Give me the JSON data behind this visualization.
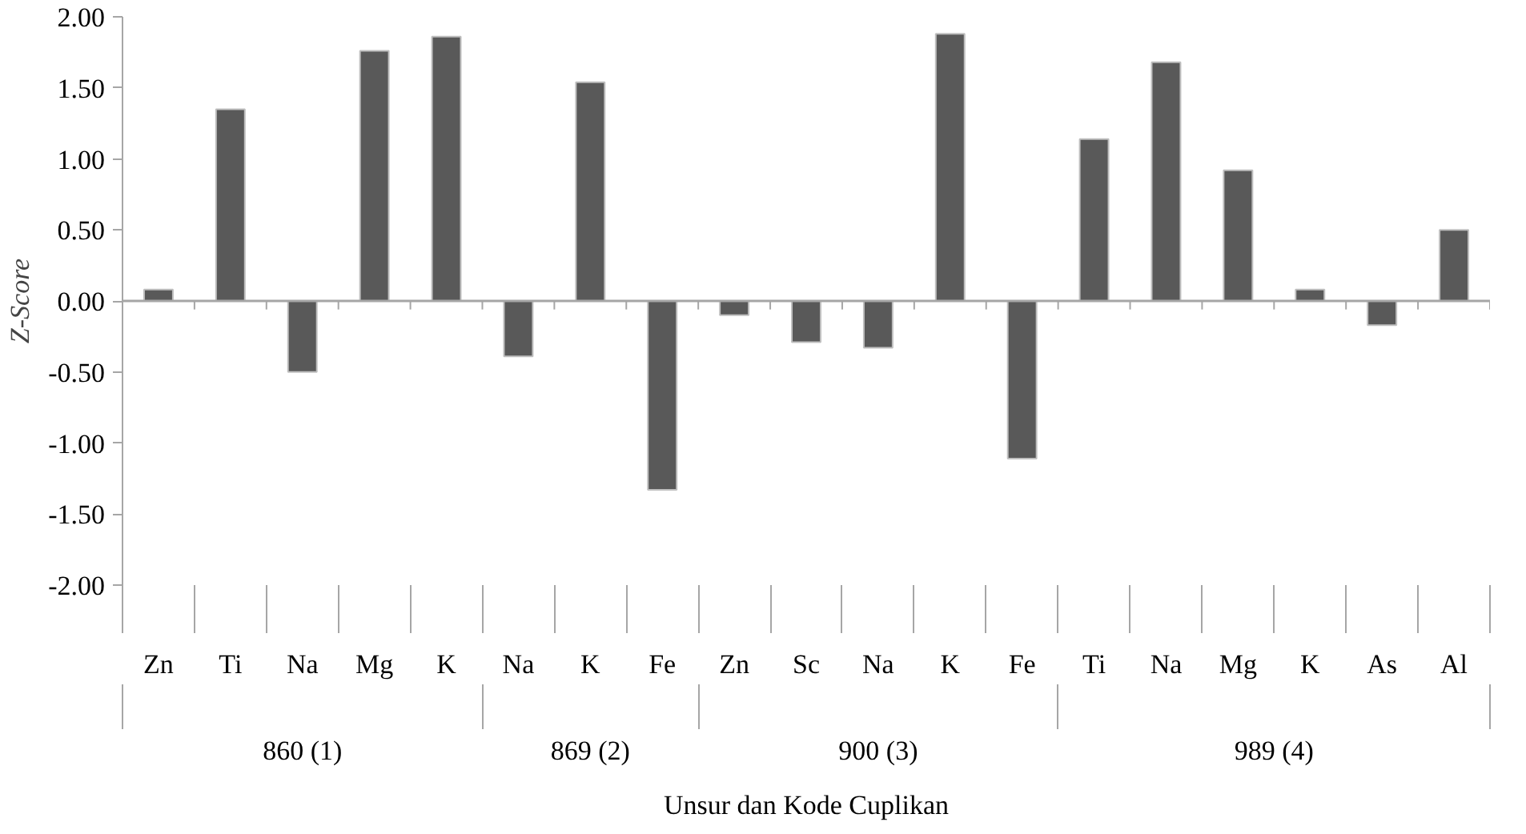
{
  "chart_data": {
    "type": "bar",
    "xlabel": "Unsur dan Kode Cuplikan",
    "ylabel": "Z-Score",
    "categories": [
      "Zn",
      "Ti",
      "Na",
      "Mg",
      "K",
      "Na",
      "K",
      "Fe",
      "Zn",
      "Sc",
      "Na",
      "K",
      "Fe",
      "Ti",
      "Na",
      "Mg",
      "K",
      "As",
      "Al"
    ],
    "values": [
      0.08,
      1.35,
      -0.5,
      1.76,
      1.86,
      -0.39,
      1.54,
      -1.33,
      -0.1,
      -0.29,
      -0.33,
      1.88,
      -1.11,
      1.14,
      1.68,
      0.92,
      0.08,
      -0.17,
      0.5
    ],
    "annotations": [
      "860 (1)",
      "869 (2)",
      "900 (3)",
      "989 (4)"
    ],
    "color": "#595959",
    "ylim": [
      -2,
      2
    ],
    "yticks": [
      {
        "value": -2,
        "label": "-2.00"
      },
      {
        "value": -1.5,
        "label": "-1.50"
      },
      {
        "value": -1,
        "label": "-1.00"
      },
      {
        "value": -0.5,
        "label": "-0.50"
      },
      {
        "value": 0,
        "label": "0.00"
      },
      {
        "value": 0.5,
        "label": "0.50"
      },
      {
        "value": 1,
        "label": "1.00"
      },
      {
        "value": 1.5,
        "label": "1.50"
      },
      {
        "value": 2,
        "label": "2.00"
      }
    ]
  }
}
